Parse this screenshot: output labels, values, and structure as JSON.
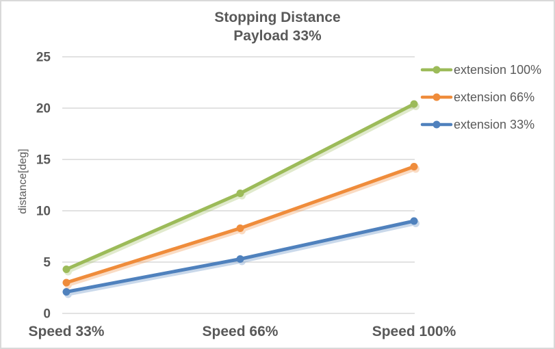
{
  "chart": {
    "title_line1": "Stopping Distance",
    "title_line2": "Payload 33%",
    "ylabel": "distance[deg]"
  },
  "chart_data": {
    "type": "line",
    "title": "Stopping Distance Payload 33%",
    "xlabel": "",
    "ylabel": "distance[deg]",
    "categories": [
      "Speed 33%",
      "Speed 66%",
      "Speed 100%"
    ],
    "series": [
      {
        "name": "extension 100%",
        "values": [
          4.3,
          11.7,
          20.4
        ],
        "color": "#9CBB59"
      },
      {
        "name": "extension 66%",
        "values": [
          3.0,
          8.3,
          14.3
        ],
        "color": "#EF8C3B"
      },
      {
        "name": "extension 33%",
        "values": [
          2.1,
          5.3,
          9.0
        ],
        "color": "#4F81BD"
      }
    ],
    "ylim": [
      0,
      25
    ],
    "yticks": [
      0,
      5,
      10,
      15,
      20,
      25
    ],
    "grid": true,
    "marker": "circle",
    "legend_position": "right",
    "colors": {
      "text": "#595959",
      "gridline": "#D9D9D9",
      "border": "#D9D9D9",
      "background": "#FFFFFF"
    }
  }
}
